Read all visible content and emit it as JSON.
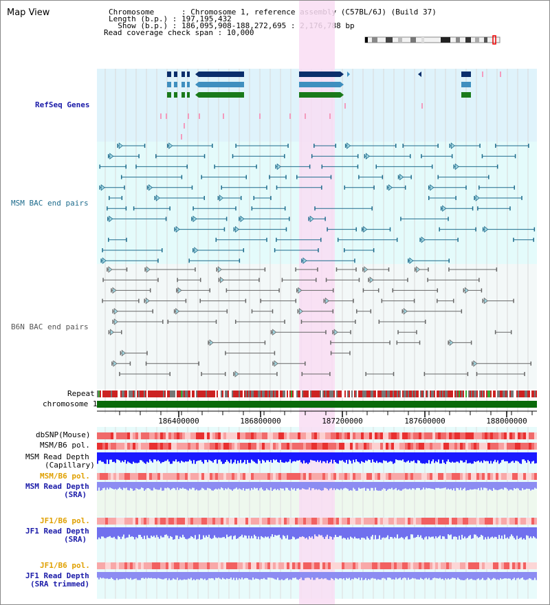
{
  "title": "Map View",
  "info": {
    "chromosome": "Chromosome      : Chromosome 1, reference assembly (C57BL/6J) (Build 37)",
    "length": "Length (b.p.) : 197,195,432",
    "show": "  Show (b.p.) : 186,095,908-188,272,695 : 2,176,788 bp",
    "coverage": "Read coverage check span : 10,000"
  },
  "tracks": {
    "refseq": "RefSeq Genes",
    "msm_bac": "MSM BAC end pairs",
    "b6n_bac": "B6N BAC end pairs",
    "repeat": "Repeat",
    "chromosome": "chromosome 1",
    "dbsnp": "dbSNP(Mouse)",
    "msm_b6_pol_1": "MSM/B6 pol.",
    "msm_depth_cap_1": "MSM Read Depth",
    "msm_depth_cap_2": "(Capillary)",
    "msm_b6_pol_2": "MSM/B6 pol.",
    "msm_depth_sra_1": "MSM Read Depth",
    "msm_depth_sra_2": "(SRA)",
    "jf1_pol_1": "JF1/B6 pol.",
    "jf1_depth_sra_1": "JF1 Read Depth",
    "jf1_depth_sra_2": "(SRA)",
    "jf1_pol_2": "JF1/B6 pol.",
    "jf1_depth_trim_1": "JF1 Read Depth",
    "jf1_depth_trim_2": "(SRA trimmed)"
  },
  "axis": {
    "ticks": [
      "186400000",
      "186800000",
      "187200000",
      "187600000",
      "188000000"
    ]
  },
  "colors": {
    "refseq_bg": "#dff3fb",
    "msm_bg": "#e4fbfb",
    "b6n_bg": "#f3f8f8",
    "highlight": "#f9ddf3",
    "label_blue": "#1a1aa8",
    "label_orange": "#e0a000",
    "msm_teal": "#1d6b8c",
    "gene_dark": "#0b2e6b",
    "gene_mid": "#3f8fbf",
    "gene_green": "#1a7a1a",
    "chrom_green": "#0a6a0a"
  }
}
